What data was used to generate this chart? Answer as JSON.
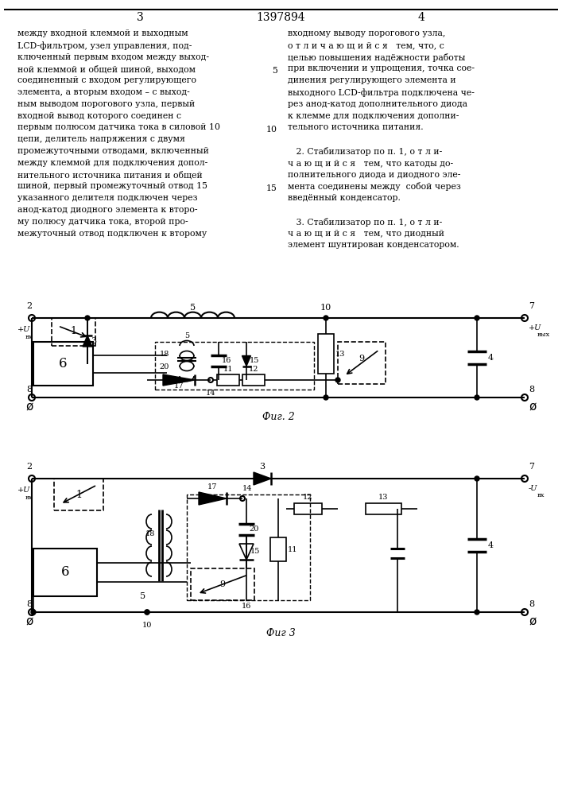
{
  "title": "1397894",
  "page_left": "3",
  "page_right": "4",
  "fig2_label": "Фиг. 2",
  "fig3_label": "Фиг 3",
  "bg_color": "#ffffff",
  "text_color": "#000000",
  "line_color": "#000000",
  "left_col_lines": [
    "между входной клеммой и выходным",
    "LCD-фильтром, узел управления, под-",
    "ключенный первым входом между выход-",
    "ной клеммой и общей шиной, выходом",
    "соединенный с входом регулирующего",
    "элемента, а вторым входом – с выход-",
    "ным выводом порогового узла, первый",
    "входной вывод которого соединен с",
    "первым полюсом датчика тока в силовой 10",
    "цепи, делитель напряжения с двумя",
    "промежуточными отводами, включенный",
    "между клеммой для подключения допол-",
    "нительного источника питания и общей",
    "шиной, первый промежуточный отвод 15",
    "указанного делителя подключен через",
    "анод-катод диодного элемента к второ-",
    "му полюсу датчика тока, второй про-",
    "межуточный отвод подключен к второму"
  ],
  "right_col_lines": [
    "входному выводу порогового узла,",
    "о т л и ч а ю щ и й с я   тем, что, с",
    "целью повышения надёжности работы",
    "при включении и упрощения, точка сое-",
    "динения регулирующего элемента и",
    "выходного LCD-фильтра подключена че-",
    "рез анод-катод дополнительного диода",
    "к клемме для подключения дополни-",
    "тельного источника питания.",
    "",
    "   2. Стабилизатор по п. 1, о т л и-",
    "ч а ю щ и й с я   тем, что катоды до-",
    "полнительного диода и диодного эле-",
    "мента соединены между  собой через",
    "введённый конденсатор.",
    "",
    "   3. Стабилизатор по п. 1, о т л и-",
    "ч а ю щ и й с я   тем, что диодный",
    "элемент шунтирован конденсатором."
  ]
}
